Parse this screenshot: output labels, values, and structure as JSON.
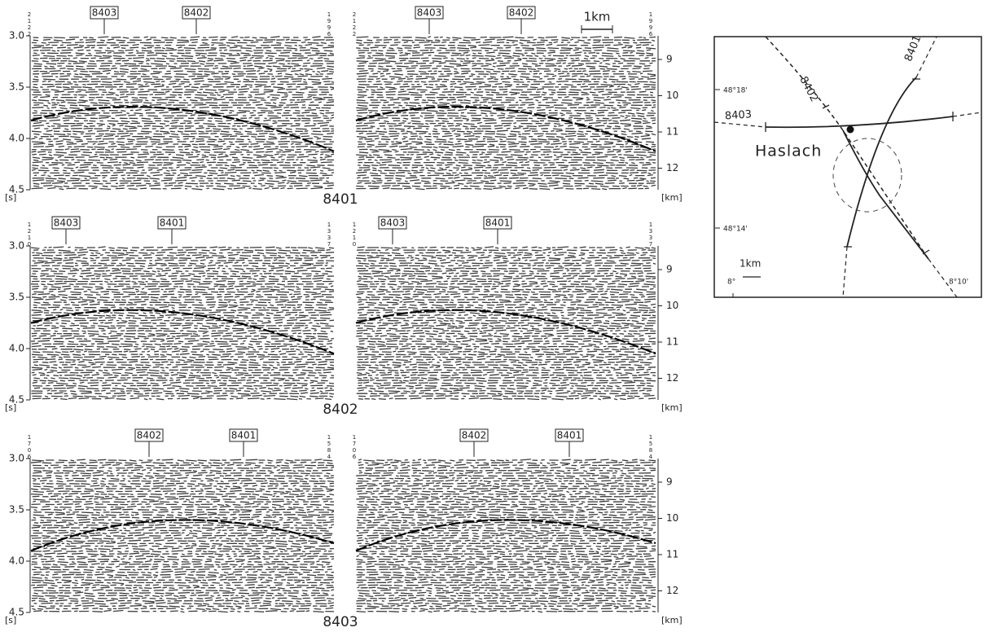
{
  "sections": [
    {
      "name": "8401",
      "time_ticks": [
        "3.0",
        "3.5",
        "4.0",
        "4.5"
      ],
      "time_unit": "[s]",
      "depth_ticks": [
        "9",
        "10",
        "11",
        "12"
      ],
      "depth_unit": "[km]",
      "halves": [
        {
          "start_label": "2122",
          "end_label": "1996",
          "crossings": [
            "8403",
            "8402"
          ]
        },
        {
          "start_label": "2122",
          "end_label": "1996",
          "crossings": [
            "8403",
            "8402"
          ]
        }
      ]
    },
    {
      "name": "8402",
      "time_ticks": [
        "3.0",
        "3.5",
        "4.0",
        "4.5"
      ],
      "time_unit": "[s]",
      "depth_ticks": [
        "9",
        "10",
        "11",
        "12"
      ],
      "depth_unit": "[km]",
      "halves": [
        {
          "start_label": "1210",
          "end_label": "1337",
          "crossings": [
            "8403",
            "8401"
          ]
        },
        {
          "start_label": "1210",
          "end_label": "1337",
          "crossings": [
            "8403",
            "8401"
          ]
        }
      ]
    },
    {
      "name": "8403",
      "time_ticks": [
        "3.0",
        "3.5",
        "4.0",
        "4.5"
      ],
      "time_unit": "[s]",
      "depth_ticks": [
        "9",
        "10",
        "11",
        "12"
      ],
      "depth_unit": "[km]",
      "halves": [
        {
          "start_label": "1706",
          "end_label": "1584",
          "crossings": [
            "8402",
            "8401"
          ]
        },
        {
          "start_label": "1706",
          "end_label": "1584",
          "crossings": [
            "8402",
            "8401"
          ]
        }
      ]
    }
  ],
  "scale_bar": "1km",
  "map": {
    "lines": [
      "8402",
      "8401",
      "8403"
    ],
    "place": "Haslach",
    "lat_labels": [
      "48°18'",
      "48°14'"
    ],
    "lon_labels": [
      "8°",
      "8°10'"
    ],
    "scale_bar": "1km"
  }
}
